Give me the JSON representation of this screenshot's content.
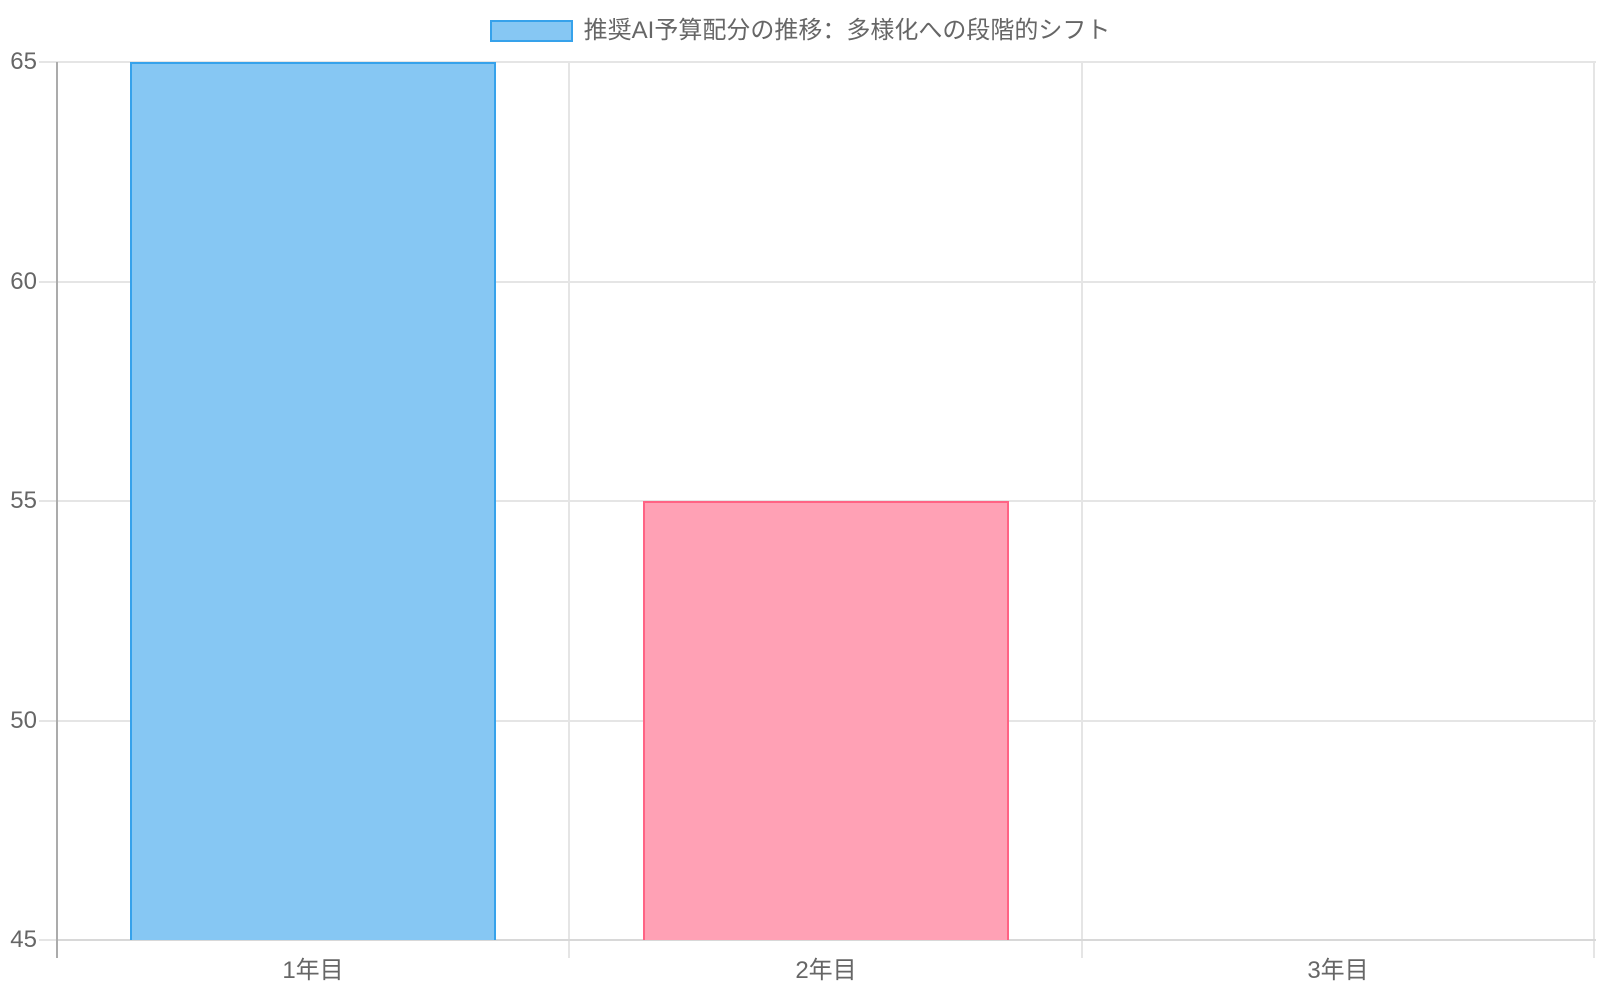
{
  "chart_data": {
    "type": "bar",
    "title": "推奨AI予算配分の推移：多様化への段階的シフト",
    "legend": {
      "position": "top",
      "label": "推奨AI予算配分の推移：多様化への段階的シフト"
    },
    "categories": [
      "1年目",
      "2年目",
      "3年目"
    ],
    "values": [
      65,
      55,
      45
    ],
    "bars": [
      {
        "category": "1年目",
        "value": 65,
        "fill": "#86C7F3",
        "border": "#36A2EB"
      },
      {
        "category": "2年目",
        "value": 55,
        "fill": "#FFA1B5",
        "border": "#FF6384"
      },
      {
        "category": "3年目",
        "value": 45,
        "fill": null,
        "border": null
      }
    ],
    "xlabel": "",
    "ylabel": "",
    "ylim": [
      45,
      65
    ],
    "yticks": [
      65,
      60,
      55,
      50,
      45
    ],
    "grid": true
  },
  "style": {
    "background": "#FFFFFF",
    "text_color": "#666666",
    "gridline_color": "#E5E5E5",
    "y_axis_color": "#ABABAB",
    "x_axis_color": "#D8D8D8",
    "legend_swatch_fill": "#86C7F3",
    "legend_swatch_border": "#36A2EB"
  }
}
